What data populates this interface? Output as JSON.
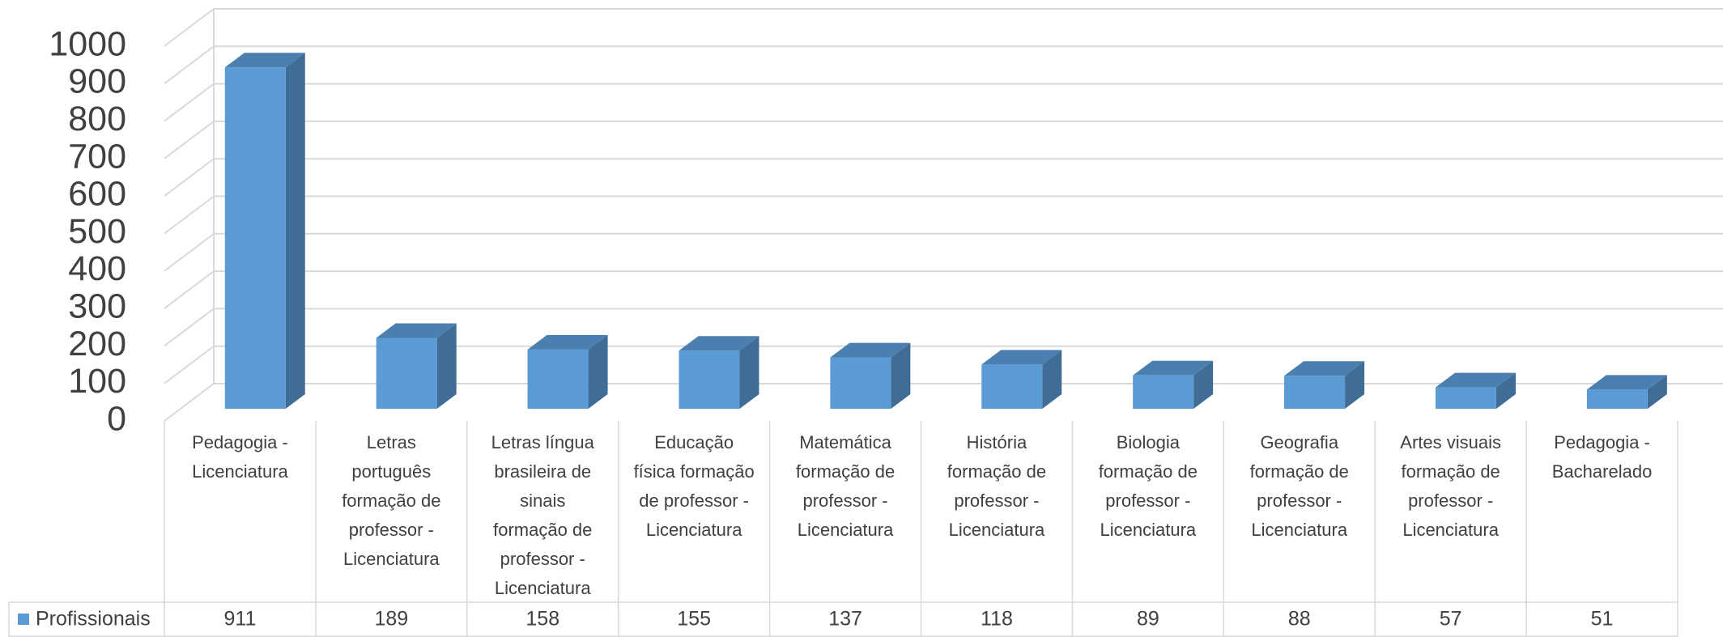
{
  "chart_data": {
    "type": "bar3d",
    "categories": [
      "Pedagogia - Licenciatura",
      "Letras português formação de professor - Licenciatura",
      "Letras língua brasileira de sinais formação de professor - Licenciatura",
      "Educação física formação de professor - Licenciatura",
      "Matemática formação de professor - Licenciatura",
      "História formação de professor - Licenciatura",
      "Biologia formação de professor - Licenciatura",
      "Geografia formação de professor - Licenciatura",
      "Artes visuais formação de professor - Licenciatura",
      "Pedagogia - Bacharelado"
    ],
    "series": [
      {
        "name": "Profissionais",
        "color": "#5b9bd5",
        "values": [
          911,
          189,
          158,
          155,
          137,
          118,
          89,
          88,
          57,
          51
        ]
      }
    ],
    "ylim": [
      0,
      1000
    ],
    "yticks": [
      0,
      100,
      200,
      300,
      400,
      500,
      600,
      700,
      800,
      900,
      1000
    ],
    "grid": true,
    "data_table": true
  }
}
